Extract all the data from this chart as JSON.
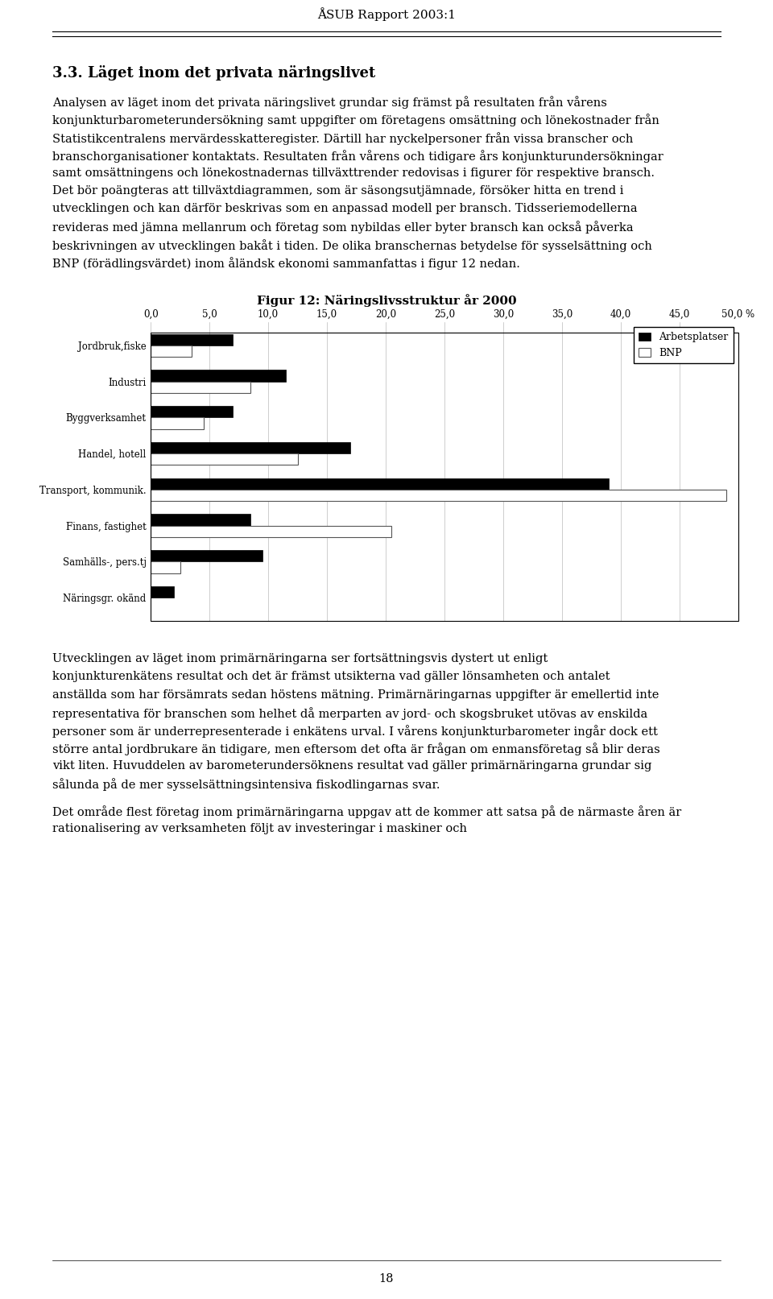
{
  "page_header": "ÅSUB Rapport 2003:1",
  "section_title": "3.3. Läget inom det privata näringslivet",
  "paragraphs_before_chart": [
    "Analysen av läget inom det privata näringslivet grundar sig främst på resultaten från vårens konjunkturbarometerundersökning samt uppgifter om företagens omsättning och lönekostnader från Statistikcentralens mervärdesskatteregister. Därtill har nyckelpersoner från vissa branscher och branschorganisationer kontaktats. Resultaten från vårens och tidigare års konjunkturundersökningar samt omsättningens och lönekostnadernas tillväxttrender redovisas i figurer för respektive bransch. Det bör poängteras att tillväxtdiagrammen, som är säsongsutjämnade, försöker hitta en trend i utvecklingen och kan därför beskrivas som en anpassad modell per bransch. Tidsseriemodellerna revideras med jämna mellanrum och företag som nybildas eller byter bransch kan också påverka beskrivningen av utvecklingen bakåt i tiden.  De olika branschernas betydelse för sysselsättning och BNP (förädlingsvärdet) inom åländsk ekonomi sammanfattas i figur 12 nedan."
  ],
  "chart_title": "Figur 12: Näringslivsstruktur år 2000",
  "categories": [
    "Jordbruk,fiske",
    "Industri",
    "Byggverksamhet",
    "Handel, hotell",
    "Transport, kommunik.",
    "Finans, fastighet",
    "Samhälls-, pers.tj",
    "Näringsgr. okänd"
  ],
  "arbetsplatser": [
    7.0,
    11.5,
    7.0,
    17.0,
    39.0,
    8.5,
    9.5,
    2.0
  ],
  "bnp": [
    3.5,
    8.5,
    4.5,
    12.5,
    49.0,
    20.5,
    2.5,
    0.0
  ],
  "xlim": [
    0,
    50
  ],
  "xticks": [
    0.0,
    5.0,
    10.0,
    15.0,
    20.0,
    25.0,
    30.0,
    35.0,
    40.0,
    45.0,
    50.0
  ],
  "legend_labels": [
    "Arbetsplatser",
    "BNP"
  ],
  "arbetsplatser_color": "#000000",
  "bnp_color": "#ffffff",
  "bnp_edgecolor": "#555555",
  "bar_edgecolor": "#000000",
  "paragraph_after_chart_1": "Utvecklingen av läget inom primärnäringarna ser fortsättningsvis dystert ut enligt konjunkturenkätens resultat och det är främst utsikterna vad gäller lönsamheten och antalet anställda som har försämrats sedan höstens mätning. Primärnäringarnas uppgifter är emellertid inte representativa för branschen som helhet då merparten av jord- och skogsbruket utövas av enskilda personer som är underrepresenterade i enkätens urval. I vårens konjunkturbarometer ingår dock ett större antal jordbrukare än tidigare, men eftersom det ofta är frågan om enmansföretag så blir deras vikt liten. Huvuddelen av barometerundersöknens resultat vad gäller primärnäringarna grundar sig sålunda på de mer sysselsättningsintensiva fiskodlingarnas svar.",
  "paragraph_after_chart_1_bold": "primärnäringarna",
  "paragraph_after_chart_2": "Det område flest företag inom primärnäringarna uppgav att de kommer att satsa på de närmaste åren är rationalisering av verksamheten följt av investeringar i maskiner och",
  "footer": "18",
  "background_color": "#ffffff",
  "text_color": "#000000",
  "font_size_body": 10.5,
  "font_size_section": 13,
  "font_size_header": 11,
  "font_size_chart_title": 11
}
